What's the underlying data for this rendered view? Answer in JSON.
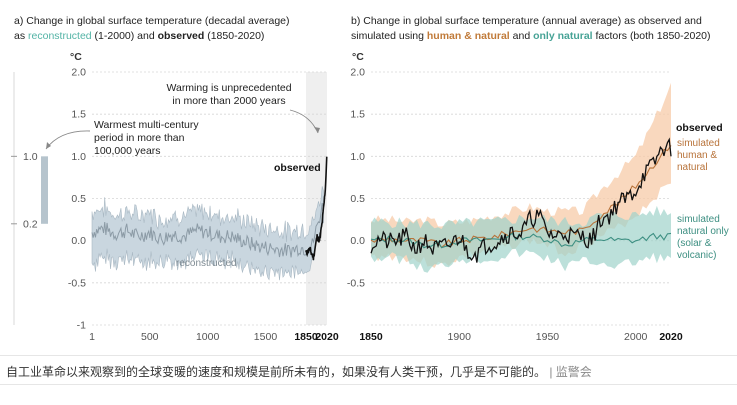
{
  "chart_data": [
    {
      "id": "a",
      "type": "area",
      "title_line1": "a) Change in global surface temperature (decadal average)",
      "title_line2_parts": [
        {
          "text": "as ",
          "style": "plain"
        },
        {
          "text": "reconstructed",
          "style": "reconstructed"
        },
        {
          "text": " (1-2000) and ",
          "style": "plain"
        },
        {
          "text": "observed",
          "style": "bold"
        },
        {
          "text": " (1850-2020)",
          "style": "plain"
        }
      ],
      "ylabel": "°C",
      "ylim": [
        -1,
        2
      ],
      "yticks": [
        "2.0",
        "1.5",
        "1.0",
        "0.5",
        "0.0",
        "-0.5",
        "-1"
      ],
      "ytick_values": [
        2,
        1.5,
        1,
        0.5,
        0,
        -0.5,
        -1
      ],
      "xticks": [
        "1",
        "500",
        "1000",
        "1500",
        "1850",
        "2020"
      ],
      "xtick_values": [
        1,
        500,
        1000,
        1500,
        1850,
        2020
      ],
      "xlim": [
        1,
        2020
      ],
      "shaded_period": [
        1850,
        2020
      ],
      "reconstructed": {
        "label": "reconstructed",
        "x": [
          1,
          100,
          200,
          300,
          400,
          500,
          600,
          700,
          800,
          900,
          1000,
          1100,
          1200,
          1300,
          1400,
          1500,
          1600,
          1700,
          1800,
          1850,
          1900,
          2000
        ],
        "median": [
          0.1,
          0.15,
          0.08,
          0.12,
          0.05,
          0.1,
          0.02,
          0.08,
          0.05,
          0.12,
          0.1,
          0.05,
          0.05,
          0.0,
          -0.05,
          -0.08,
          -0.1,
          -0.12,
          -0.08,
          -0.1,
          -0.05,
          0.5
        ],
        "lower": [
          -0.35,
          -0.3,
          -0.3,
          -0.3,
          -0.3,
          -0.3,
          -0.35,
          -0.3,
          -0.3,
          -0.25,
          -0.25,
          -0.3,
          -0.3,
          -0.35,
          -0.4,
          -0.45,
          -0.45,
          -0.45,
          -0.4,
          -0.4,
          -0.3,
          0.3
        ],
        "upper": [
          0.4,
          0.45,
          0.35,
          0.4,
          0.35,
          0.4,
          0.3,
          0.35,
          0.35,
          0.4,
          0.4,
          0.35,
          0.35,
          0.3,
          0.25,
          0.2,
          0.2,
          0.15,
          0.2,
          0.2,
          0.25,
          0.7
        ]
      },
      "observed": {
        "label": "observed",
        "x": [
          1850,
          1880,
          1910,
          1940,
          1960,
          1980,
          1990,
          2000,
          2010,
          2020
        ],
        "values": [
          -0.15,
          -0.1,
          -0.2,
          0.05,
          0.0,
          0.2,
          0.35,
          0.5,
          0.7,
          1.07
        ]
      },
      "multi_century_bar": {
        "range": [
          0.2,
          1.0
        ],
        "tick_labels": [
          "1.0",
          "0.2"
        ]
      },
      "annotations": [
        {
          "id": "unprecedented",
          "lines": [
            "Warming is unprecedented",
            "in more than 2000 years"
          ]
        },
        {
          "id": "warmest",
          "lines": [
            "Warmest multi-century",
            "period in more than",
            "100,000 years"
          ]
        }
      ]
    },
    {
      "id": "b",
      "type": "line",
      "title_line1": "b) Change in global surface temperature (annual average) as observed and",
      "title_line2_parts": [
        {
          "text": "simulated using ",
          "style": "plain"
        },
        {
          "text": "human & natural",
          "style": "human"
        },
        {
          "text": " and ",
          "style": "plain"
        },
        {
          "text": "only natural",
          "style": "natural"
        },
        {
          "text": " factors (both 1850-2020)",
          "style": "plain"
        }
      ],
      "ylabel": "°C",
      "ylim": [
        -1,
        2
      ],
      "yticks": [
        "2.0",
        "1.5",
        "1.0",
        "0.5",
        "0.0",
        "-0.5"
      ],
      "ytick_values": [
        2,
        1.5,
        1,
        0.5,
        0,
        -0.5
      ],
      "xticks": [
        "1850",
        "1900",
        "1950",
        "2000",
        "2020"
      ],
      "xtick_values": [
        1850,
        1900,
        1950,
        2000,
        2020
      ],
      "xlim": [
        1850,
        2020
      ],
      "series": [
        {
          "name": "simulated human & natural",
          "label_lines": [
            "simulated",
            "human &",
            "natural"
          ],
          "color": "#b8733a",
          "band_color": "#f7cba8",
          "x": [
            1850,
            1860,
            1870,
            1880,
            1890,
            1900,
            1910,
            1920,
            1930,
            1940,
            1950,
            1960,
            1970,
            1980,
            1990,
            2000,
            2010,
            2020
          ],
          "values": [
            0.0,
            0.02,
            0.0,
            0.0,
            -0.05,
            0.0,
            0.02,
            0.05,
            0.1,
            0.15,
            0.12,
            0.1,
            0.12,
            0.3,
            0.45,
            0.65,
            0.9,
            1.15
          ],
          "lower": [
            -0.2,
            -0.18,
            -0.2,
            -0.25,
            -0.3,
            -0.2,
            -0.15,
            -0.12,
            -0.05,
            0.0,
            -0.05,
            -0.15,
            -0.05,
            0.05,
            0.15,
            0.3,
            0.5,
            0.7
          ],
          "upper": [
            0.25,
            0.25,
            0.22,
            0.25,
            0.2,
            0.22,
            0.25,
            0.3,
            0.35,
            0.4,
            0.35,
            0.35,
            0.35,
            0.6,
            0.8,
            1.0,
            1.4,
            1.85
          ]
        },
        {
          "name": "simulated natural only (solar & volcanic)",
          "label_lines": [
            "simulated",
            "natural only",
            "(solar &",
            "volcanic)"
          ],
          "color": "#3d8f82",
          "band_color": "#9fd3ca",
          "x": [
            1850,
            1860,
            1870,
            1880,
            1890,
            1900,
            1910,
            1920,
            1930,
            1940,
            1950,
            1960,
            1970,
            1980,
            1990,
            2000,
            2010,
            2020
          ],
          "values": [
            0.0,
            0.02,
            0.0,
            -0.05,
            -0.05,
            0.0,
            0.0,
            0.02,
            0.05,
            0.05,
            0.02,
            -0.05,
            0.0,
            0.02,
            0.0,
            0.0,
            0.05,
            0.05
          ],
          "lower": [
            -0.2,
            -0.2,
            -0.22,
            -0.35,
            -0.3,
            -0.2,
            -0.22,
            -0.2,
            -0.15,
            -0.15,
            -0.2,
            -0.3,
            -0.25,
            -0.25,
            -0.3,
            -0.25,
            -0.2,
            -0.2
          ],
          "upper": [
            0.22,
            0.22,
            0.2,
            0.2,
            0.18,
            0.2,
            0.22,
            0.22,
            0.25,
            0.28,
            0.25,
            0.22,
            0.22,
            0.3,
            0.3,
            0.3,
            0.35,
            0.32
          ]
        },
        {
          "name": "observed",
          "label_lines": [
            "observed"
          ],
          "color": "#111111",
          "x": [
            1850,
            1855,
            1860,
            1865,
            1870,
            1875,
            1880,
            1885,
            1890,
            1895,
            1900,
            1905,
            1910,
            1915,
            1920,
            1925,
            1930,
            1935,
            1940,
            1945,
            1950,
            1955,
            1960,
            1965,
            1970,
            1975,
            1980,
            1985,
            1990,
            1995,
            2000,
            2005,
            2010,
            2015,
            2020
          ],
          "values": [
            -0.05,
            0.02,
            -0.02,
            0.0,
            0.05,
            -0.1,
            0.0,
            -0.1,
            -0.08,
            -0.05,
            0.05,
            -0.12,
            -0.15,
            -0.05,
            -0.02,
            0.05,
            0.1,
            0.08,
            0.25,
            0.3,
            0.1,
            0.05,
            0.1,
            0.05,
            0.05,
            0.0,
            0.25,
            0.3,
            0.45,
            0.5,
            0.6,
            0.8,
            0.9,
            1.1,
            1.1
          ]
        }
      ]
    }
  ],
  "caption": {
    "text": "自工业革命以来观察到的全球变暖的速度和规模是前所未有的，如果没有人类干预，几乎是不可能的。",
    "source": "| 监警会"
  },
  "colors": {
    "reconstructed_label": "#52b3a5",
    "reconstructed_band": "#c9d6df",
    "reconstructed_line": "#8c9ba6",
    "human": "#c07a39",
    "natural": "#47a396",
    "axis_text": "#555555",
    "shade": "#efefef"
  }
}
